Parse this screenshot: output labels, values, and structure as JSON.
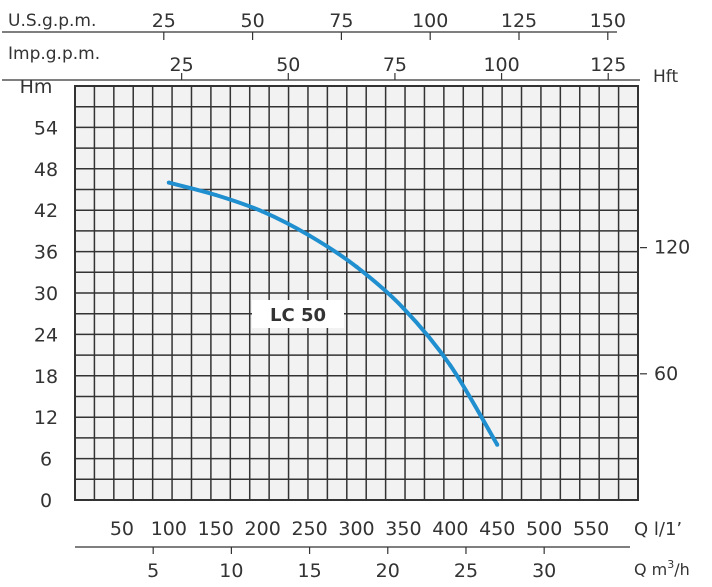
{
  "chart_data": {
    "type": "line",
    "series": [
      {
        "name": "LC 50",
        "x": [
          100,
          150,
          200,
          250,
          300,
          350,
          400,
          450
        ],
        "y": [
          46,
          44.2,
          41.8,
          38.3,
          33.8,
          27.8,
          19.5,
          8
        ],
        "color": "#1f8fcf"
      }
    ],
    "series_label": "LC 50",
    "y_label": "Hm",
    "y_ticks": [
      0,
      6,
      12,
      18,
      24,
      30,
      36,
      42,
      48,
      54
    ],
    "y_range": [
      0,
      60
    ],
    "x_label": "Q l/1’",
    "x_ticks": [
      50,
      100,
      150,
      200,
      250,
      300,
      350,
      400,
      450,
      500,
      550
    ],
    "x_range": [
      0,
      600
    ],
    "grid": true,
    "top_axis_usgpm": {
      "label": "U.S.g.p.m.",
      "ticks": [
        25,
        50,
        75,
        100,
        125,
        150
      ]
    },
    "top_axis_impgpm": {
      "label": "Imp.g.p.m.",
      "ticks": [
        25,
        50,
        75,
        100,
        125
      ]
    },
    "right_axis_hft": {
      "label": "Hft",
      "ticks": [
        60,
        120
      ]
    },
    "bottom_axis_m3h": {
      "label_q": "Q m",
      "label_sup": "3",
      "label_h": "/h",
      "ticks": [
        5,
        10,
        15,
        20,
        25,
        30
      ]
    }
  }
}
